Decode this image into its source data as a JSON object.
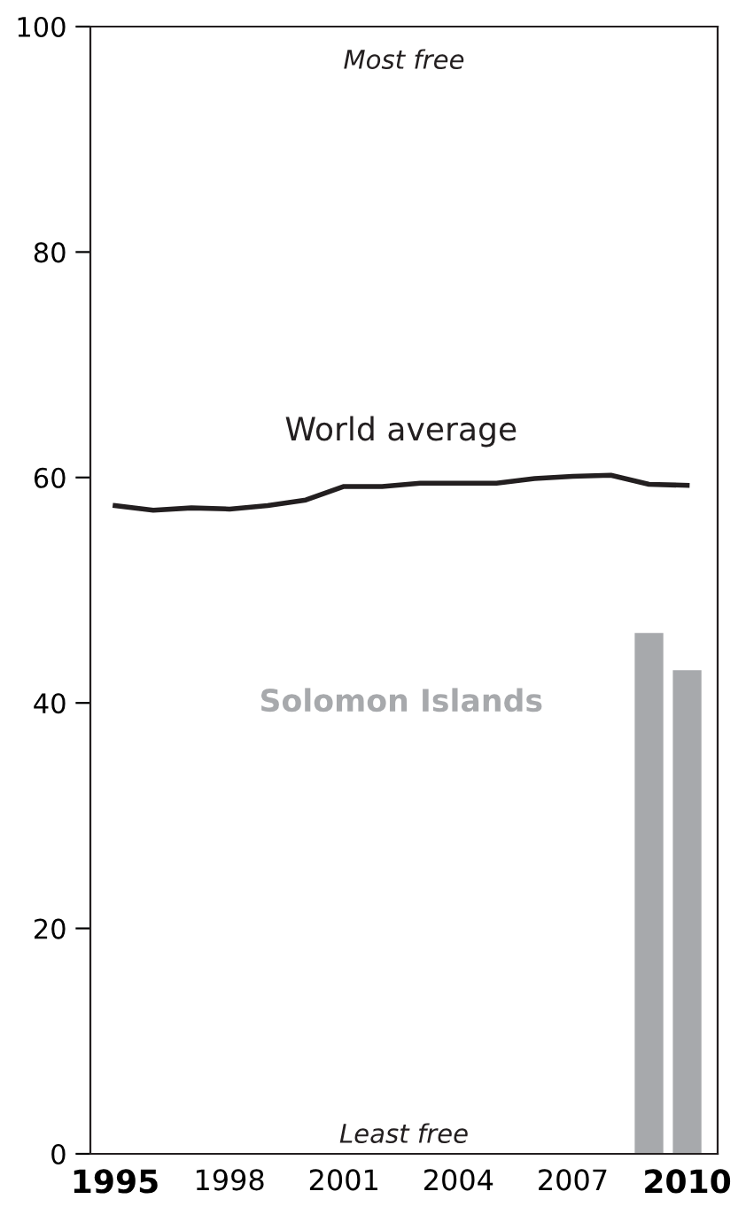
{
  "chart_data": {
    "type": "line",
    "x": [
      1995,
      1996,
      1997,
      1998,
      1999,
      2000,
      2001,
      2002,
      2003,
      2004,
      2005,
      2006,
      2007,
      2008,
      2009,
      2010
    ],
    "series": [
      {
        "name": "Solomon Islands",
        "type": "bar",
        "color": "#a7a9ac",
        "x": [
          2009,
          2010
        ],
        "values": [
          46.2,
          42.9
        ]
      },
      {
        "name": "World average",
        "color": "#231f20",
        "values": [
          57.5,
          57.1,
          57.3,
          57.2,
          57.5,
          58.0,
          59.2,
          59.2,
          59.5,
          59.5,
          59.5,
          59.9,
          60.1,
          60.2,
          59.4,
          59.3
        ]
      }
    ],
    "annotations": [
      "Most free",
      "Least free"
    ],
    "xlim": [
      1994.35,
      2010.8
    ],
    "xticks": [
      1995,
      1998,
      2001,
      2004,
      2007,
      2010
    ],
    "ylim": [
      0,
      100
    ],
    "yticks": [
      0,
      20,
      40,
      60,
      80,
      100
    ],
    "grid": false,
    "legend": false,
    "line_style": "solid",
    "marker": "none"
  }
}
